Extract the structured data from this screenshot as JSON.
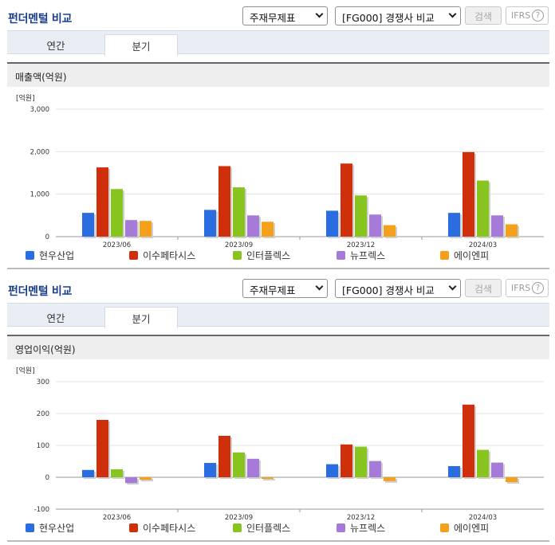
{
  "panels": [
    {
      "header": {
        "title": "펀더멘털 비교",
        "select_type": "주재무제표",
        "select_peer": "[FG000] 경쟁사 비교",
        "search_label": "검색",
        "ifrs_label": "IFRS",
        "help_glyph": "?"
      },
      "tabs": [
        "연간",
        "분기"
      ],
      "active_tab": "분기",
      "section_title": "매출액(억원)",
      "y_unit": "[억원]",
      "y_ticks": [
        "3,000",
        "2,000",
        "1,000",
        "0"
      ]
    },
    {
      "header": {
        "title": "펀더멘털 비교",
        "select_type": "주재무제표",
        "select_peer": "[FG000] 경쟁사 비교",
        "search_label": "검색",
        "ifrs_label": "IFRS",
        "help_glyph": "?"
      },
      "tabs": [
        "연간",
        "분기"
      ],
      "active_tab": "분기",
      "section_title": "영업이익(억원)",
      "y_unit": "[억원]",
      "y_ticks": [
        "300",
        "200",
        "100",
        "0",
        "-100"
      ]
    }
  ],
  "legend": [
    {
      "name": "현우산업",
      "color": "#2a6de0"
    },
    {
      "name": "이수페타시스",
      "color": "#d02f0c"
    },
    {
      "name": "인터플렉스",
      "color": "#88c41e"
    },
    {
      "name": "뉴프렉스",
      "color": "#a67ad9"
    },
    {
      "name": "에이엔피",
      "color": "#f5a01a"
    }
  ],
  "chart_data": [
    {
      "type": "bar",
      "title": "매출액(억원)",
      "ylabel": "[억원]",
      "ylim": [
        0,
        3000
      ],
      "categories": [
        "2023/06",
        "2023/09",
        "2023/12",
        "2024/03"
      ],
      "series": [
        {
          "name": "현우산업",
          "values": [
            560,
            630,
            610,
            560
          ]
        },
        {
          "name": "이수페타시스",
          "values": [
            1630,
            1660,
            1720,
            1990
          ]
        },
        {
          "name": "인터플렉스",
          "values": [
            1120,
            1160,
            970,
            1320
          ]
        },
        {
          "name": "뉴프렉스",
          "values": [
            390,
            500,
            520,
            500
          ]
        },
        {
          "name": "에이엔피",
          "values": [
            370,
            350,
            270,
            290
          ]
        }
      ],
      "grid": true,
      "legend_position": "bottom"
    },
    {
      "type": "bar",
      "title": "영업이익(억원)",
      "ylabel": "[억원]",
      "ylim": [
        -100,
        300
      ],
      "categories": [
        "2023/06",
        "2023/09",
        "2023/12",
        "2024/03"
      ],
      "series": [
        {
          "name": "현우산업",
          "values": [
            23,
            45,
            41,
            35
          ]
        },
        {
          "name": "이수페타시스",
          "values": [
            180,
            130,
            103,
            228
          ]
        },
        {
          "name": "인터플렉스",
          "values": [
            25,
            78,
            96,
            86
          ]
        },
        {
          "name": "뉴프렉스",
          "values": [
            -18,
            58,
            51,
            46
          ]
        },
        {
          "name": "에이엔피",
          "values": [
            -8,
            -5,
            -12,
            -15
          ]
        }
      ],
      "grid": true,
      "legend_position": "bottom"
    }
  ]
}
